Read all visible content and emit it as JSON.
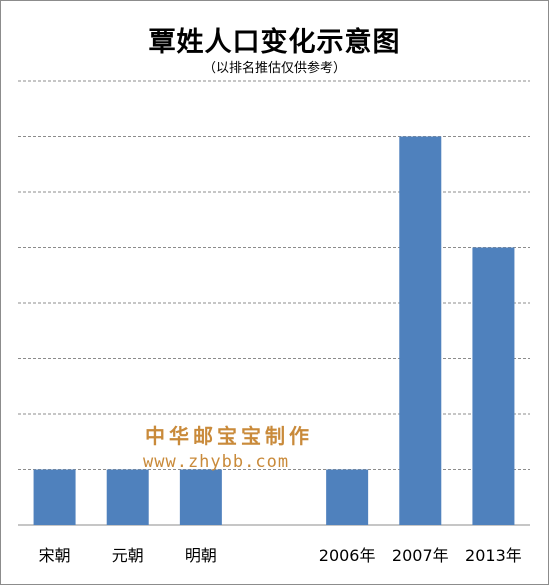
{
  "chart_data": {
    "type": "bar",
    "title": "覃姓人口变化示意图",
    "subtitle": "（以排名推估仅供参考）",
    "categories": [
      "宋朝",
      "元朝",
      "明朝",
      "",
      "2006年",
      "2007年",
      "2013年"
    ],
    "values": [
      1,
      1,
      1,
      null,
      1,
      7,
      5
    ],
    "ylim": [
      0,
      8
    ],
    "grid": true,
    "bar_color": "#4f81bd",
    "grid_color": "#8c8c8c"
  },
  "watermark": {
    "text_cn": "中华邮宝宝制作",
    "url": "www.zhybb.com",
    "color": "#c98a3a"
  }
}
